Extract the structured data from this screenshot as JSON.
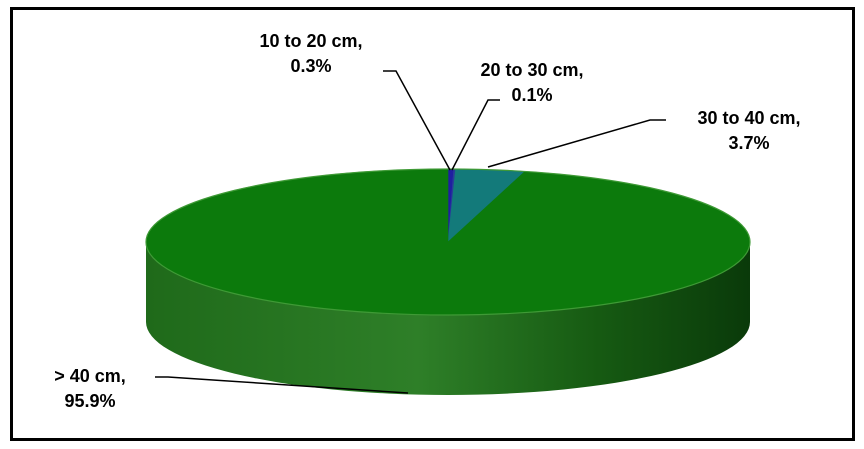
{
  "chart_data": {
    "type": "pie",
    "style": "3d",
    "slices": [
      {
        "label": "10 to 20 cm",
        "value": 0.3,
        "display": "0.3%",
        "color": "#1f1fa0"
      },
      {
        "label": "20 to 30 cm",
        "value": 0.1,
        "display": "0.1%",
        "color": "#2a3a9a"
      },
      {
        "label": "30 to 40 cm",
        "value": 3.7,
        "display": "3.7%",
        "color": "#137a7a"
      },
      {
        "label": "> 40 cm",
        "value": 95.9,
        "display": "95.9%",
        "color": "#0c7a0c"
      }
    ]
  },
  "colors": {
    "frame": "#000000",
    "side_light": "#2f7f2a",
    "side_dark": "#0a3a0a"
  },
  "labels": {
    "s0_line1": "10 to 20 cm,",
    "s0_line2": "0.3%",
    "s1_line1": "20 to 30 cm,",
    "s1_line2": "0.1%",
    "s2_line1": "30 to 40 cm,",
    "s2_line2": "3.7%",
    "s3_line1": "> 40 cm,",
    "s3_line2": "95.9%"
  }
}
